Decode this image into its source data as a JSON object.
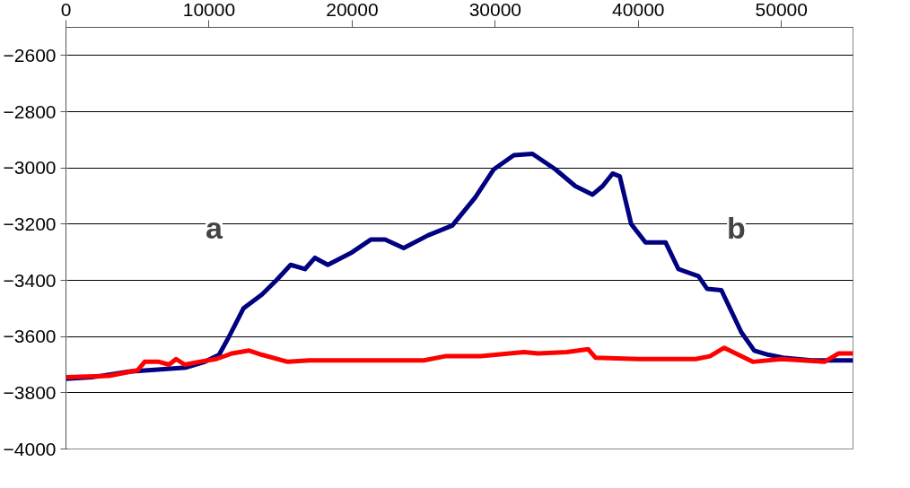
{
  "chart_data": {
    "type": "line",
    "xlim": [
      0,
      55000
    ],
    "xticks": [
      0,
      10000,
      20000,
      30000,
      40000,
      50000
    ],
    "ylim": [
      -4000,
      -2500
    ],
    "yticks": [
      -4000,
      -3800,
      -3600,
      -3400,
      -3200,
      -3000,
      -2800,
      -2600
    ],
    "grid": "y",
    "marker": "none",
    "line_style": "solid",
    "annotations": [
      "a",
      "b"
    ],
    "series": [
      {
        "color": "#000080",
        "x": [
          0,
          1800,
          4400,
          8400,
          9700,
          10700,
          11400,
          12400,
          13700,
          14700,
          15700,
          16700,
          17400,
          18300,
          20000,
          21300,
          22300,
          23600,
          25300,
          27000,
          28600,
          29900,
          31300,
          32600,
          34200,
          35600,
          36800,
          37500,
          38200,
          38700,
          39500,
          40500,
          41900,
          42800,
          44200,
          44800,
          45800,
          47200,
          48100,
          49100,
          50100,
          52100,
          55000
        ],
        "values": [
          -3750,
          -3745,
          -3725,
          -3710,
          -3690,
          -3665,
          -3600,
          -3500,
          -3450,
          -3400,
          -3345,
          -3360,
          -3320,
          -3345,
          -3300,
          -3255,
          -3255,
          -3285,
          -3240,
          -3205,
          -3105,
          -3005,
          -2955,
          -2950,
          -3005,
          -3065,
          -3095,
          -3065,
          -3020,
          -3030,
          -3200,
          -3265,
          -3265,
          -3360,
          -3385,
          -3430,
          -3435,
          -3585,
          -3650,
          -3665,
          -3675,
          -3685,
          -3685
        ]
      },
      {
        "color": "#ff0000",
        "x": [
          0,
          3000,
          5000,
          5500,
          6500,
          7200,
          7700,
          8300,
          9300,
          10500,
          11600,
          12800,
          13700,
          15500,
          17000,
          25000,
          26500,
          29000,
          32000,
          33000,
          35000,
          36500,
          37000,
          40000,
          44000,
          45000,
          46000,
          47000,
          48000,
          50000,
          53000,
          54000,
          55000
        ],
        "values": [
          -3745,
          -3740,
          -3720,
          -3690,
          -3690,
          -3700,
          -3680,
          -3700,
          -3690,
          -3680,
          -3660,
          -3650,
          -3665,
          -3690,
          -3685,
          -3685,
          -3670,
          -3670,
          -3655,
          -3660,
          -3655,
          -3645,
          -3675,
          -3680,
          -3680,
          -3670,
          -3640,
          -3665,
          -3690,
          -3680,
          -3690,
          -3660,
          -3660
        ]
      }
    ]
  }
}
